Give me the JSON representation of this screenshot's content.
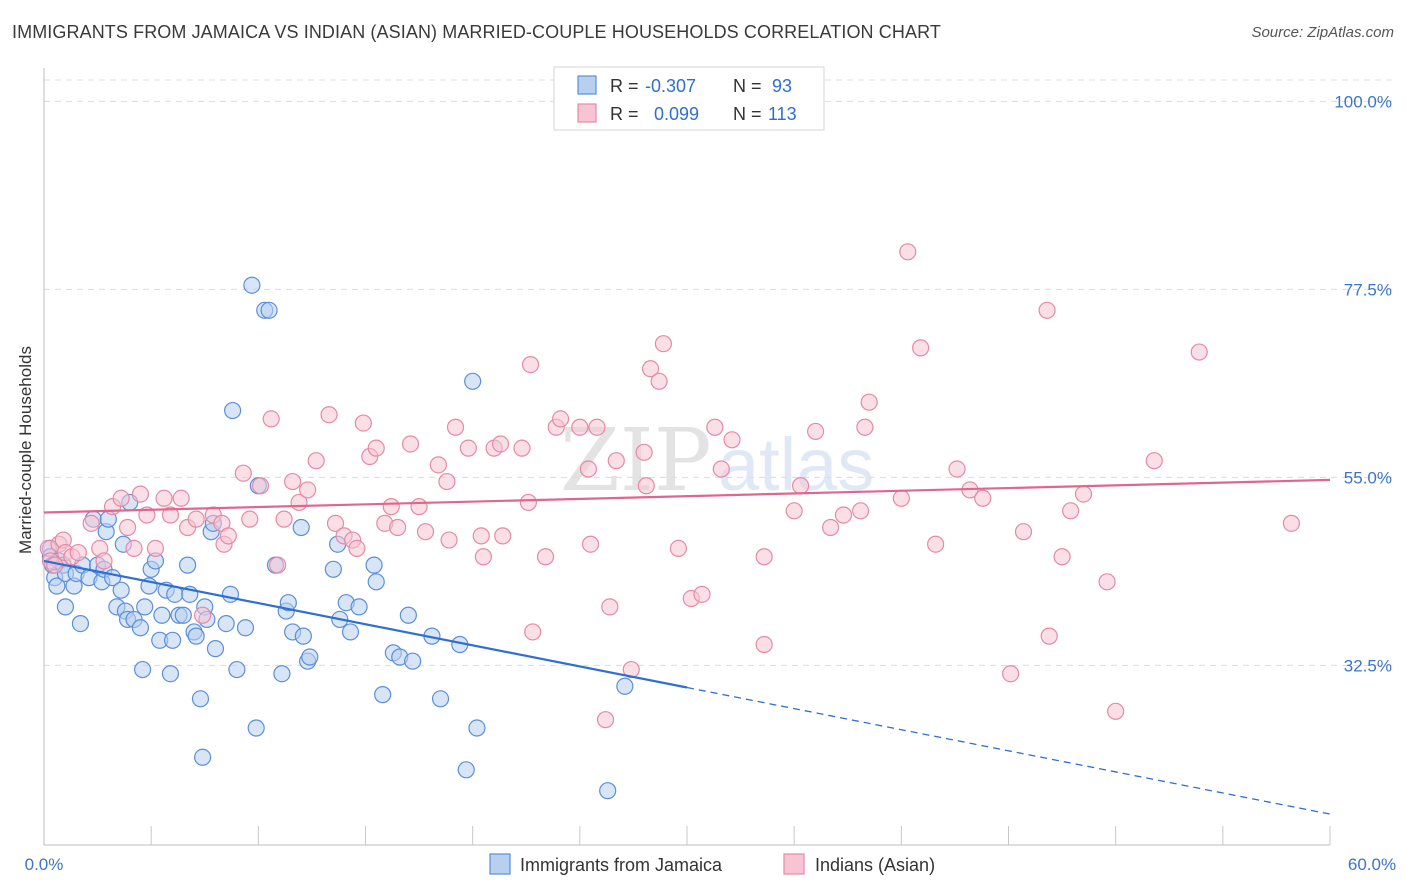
{
  "header": {
    "title": "IMMIGRANTS FROM JAMAICA VS INDIAN (ASIAN) MARRIED-COUPLE HOUSEHOLDS CORRELATION CHART",
    "source": "Source: ZipAtlas.com"
  },
  "watermark": {
    "part1": "ZIP",
    "part2": "atlas"
  },
  "stats": [
    {
      "r_label": "R =",
      "r_value": "-0.307",
      "n_label": "N =",
      "n_value": "93"
    },
    {
      "r_label": "R =",
      "r_value": "0.099",
      "n_label": "N =",
      "n_value": "113"
    }
  ],
  "chart_data": {
    "type": "scatter",
    "title": "IMMIGRANTS FROM JAMAICA VS INDIAN (ASIAN) MARRIED-COUPLE HOUSEHOLDS CORRELATION CHART",
    "xlabel": "",
    "ylabel": "Married-couple Households",
    "xlim": [
      0,
      60
    ],
    "ylim": [
      11,
      104
    ],
    "x_tick_labels": [
      "0.0%",
      "60.0%"
    ],
    "y_ticks": [
      32.5,
      55.0,
      77.5,
      100.0
    ],
    "y_tick_labels": [
      "32.5%",
      "55.0%",
      "77.5%",
      "100.0%"
    ],
    "grid": true,
    "legend_position": "bottom-center",
    "colors": {
      "jamaica": "#5b8fd9",
      "jamaica_fill": "#b8cff0",
      "jamaica_line": "#2f6fd1",
      "indian": "#e58aa6",
      "indian_fill": "#f6c4d3",
      "indian_line": "#e0668f",
      "tick_label": "#3c74cc"
    },
    "series": [
      {
        "name": "Immigrants from Jamaica",
        "r": -0.307,
        "n": 93,
        "trend": {
          "x0": 0,
          "y0": 45.0,
          "x_solid_end": 30,
          "x1": 60,
          "y1": 14.7
        },
        "points": [
          [
            0.3,
            46.5
          ],
          [
            0.3,
            45.5
          ],
          [
            0.4,
            44.5
          ],
          [
            0.5,
            43
          ],
          [
            0.6,
            42
          ],
          [
            0.7,
            45
          ],
          [
            0.9,
            44.5
          ],
          [
            1.0,
            43.5
          ],
          [
            1.0,
            39.5
          ],
          [
            1.4,
            42
          ],
          [
            1.5,
            43.5
          ],
          [
            1.7,
            37.5
          ],
          [
            1.8,
            44.5
          ],
          [
            2.1,
            43
          ],
          [
            2.3,
            50
          ],
          [
            2.5,
            44.5
          ],
          [
            2.7,
            42.5
          ],
          [
            2.8,
            44
          ],
          [
            2.9,
            48.5
          ],
          [
            3.0,
            50
          ],
          [
            3.2,
            43
          ],
          [
            3.4,
            39.5
          ],
          [
            3.6,
            41.5
          ],
          [
            3.7,
            47
          ],
          [
            3.8,
            39
          ],
          [
            3.9,
            38
          ],
          [
            4.0,
            52
          ],
          [
            4.2,
            38
          ],
          [
            4.5,
            37
          ],
          [
            4.6,
            32
          ],
          [
            4.7,
            39.5
          ],
          [
            4.9,
            42
          ],
          [
            5.0,
            44
          ],
          [
            5.2,
            45
          ],
          [
            5.4,
            35.5
          ],
          [
            5.5,
            38.5
          ],
          [
            5.7,
            41.5
          ],
          [
            5.9,
            31.5
          ],
          [
            6.0,
            35.5
          ],
          [
            6.1,
            41
          ],
          [
            6.3,
            38.5
          ],
          [
            6.5,
            38.5
          ],
          [
            6.7,
            44.5
          ],
          [
            6.8,
            41
          ],
          [
            7.0,
            36.5
          ],
          [
            7.1,
            36
          ],
          [
            7.3,
            28.5
          ],
          [
            7.4,
            21.5
          ],
          [
            7.5,
            39.5
          ],
          [
            7.6,
            38
          ],
          [
            7.8,
            48.5
          ],
          [
            7.9,
            49.5
          ],
          [
            8.0,
            34.5
          ],
          [
            8.5,
            37.5
          ],
          [
            8.7,
            41
          ],
          [
            8.8,
            63
          ],
          [
            9.0,
            32
          ],
          [
            9.4,
            37
          ],
          [
            9.7,
            78
          ],
          [
            9.9,
            25
          ],
          [
            10.0,
            54
          ],
          [
            10.3,
            75
          ],
          [
            10.5,
            75
          ],
          [
            10.8,
            44.5
          ],
          [
            11.1,
            31.5
          ],
          [
            11.3,
            39
          ],
          [
            11.4,
            40
          ],
          [
            11.6,
            36.5
          ],
          [
            12.0,
            49
          ],
          [
            12.1,
            36
          ],
          [
            12.3,
            33
          ],
          [
            12.4,
            33.5
          ],
          [
            13.5,
            44
          ],
          [
            13.7,
            47
          ],
          [
            13.8,
            38
          ],
          [
            14.1,
            40
          ],
          [
            14.3,
            36.5
          ],
          [
            15.4,
            44.5
          ],
          [
            15.5,
            42.5
          ],
          [
            14.7,
            39.5
          ],
          [
            15.8,
            29
          ],
          [
            16.3,
            34
          ],
          [
            16.6,
            33.5
          ],
          [
            17.0,
            38.5
          ],
          [
            17.2,
            33
          ],
          [
            18.1,
            36
          ],
          [
            18.5,
            28.5
          ],
          [
            19.4,
            35
          ],
          [
            20.0,
            66.5
          ],
          [
            20.2,
            25
          ],
          [
            19.7,
            20
          ],
          [
            26.3,
            17.5
          ],
          [
            27.1,
            30
          ]
        ]
      },
      {
        "name": "Indians (Asian)",
        "r": 0.099,
        "n": 113,
        "trend": {
          "x0": 0,
          "y0": 50.8,
          "x1": 60,
          "y1": 54.7
        },
        "points": [
          [
            0.2,
            46.5
          ],
          [
            0.3,
            45
          ],
          [
            0.5,
            44.5
          ],
          [
            0.7,
            47
          ],
          [
            0.9,
            47.5
          ],
          [
            1.0,
            46
          ],
          [
            1.3,
            45.5
          ],
          [
            1.6,
            46
          ],
          [
            2.2,
            49.5
          ],
          [
            2.6,
            46.5
          ],
          [
            2.8,
            45
          ],
          [
            3.2,
            51.5
          ],
          [
            3.6,
            52.5
          ],
          [
            3.9,
            49
          ],
          [
            4.2,
            46.5
          ],
          [
            4.5,
            53
          ],
          [
            4.8,
            50.5
          ],
          [
            5.2,
            46.5
          ],
          [
            5.6,
            52.5
          ],
          [
            5.9,
            50.5
          ],
          [
            6.4,
            52.5
          ],
          [
            6.7,
            49
          ],
          [
            7.1,
            50
          ],
          [
            7.4,
            38.5
          ],
          [
            7.9,
            50.5
          ],
          [
            8.3,
            49.5
          ],
          [
            8.4,
            47
          ],
          [
            8.6,
            48
          ],
          [
            9.3,
            55.5
          ],
          [
            9.6,
            50
          ],
          [
            10.1,
            54
          ],
          [
            10.6,
            62
          ],
          [
            10.9,
            44.5
          ],
          [
            11.2,
            50
          ],
          [
            11.6,
            54.5
          ],
          [
            11.9,
            52
          ],
          [
            12.3,
            53.5
          ],
          [
            12.7,
            57
          ],
          [
            13.3,
            62.5
          ],
          [
            13.6,
            49.5
          ],
          [
            14.0,
            48
          ],
          [
            14.4,
            47.5
          ],
          [
            14.6,
            46.5
          ],
          [
            14.9,
            61.5
          ],
          [
            15.2,
            57.5
          ],
          [
            15.5,
            58.5
          ],
          [
            15.9,
            49.5
          ],
          [
            16.2,
            51.5
          ],
          [
            16.5,
            49
          ],
          [
            17.1,
            59
          ],
          [
            17.5,
            51.5
          ],
          [
            17.8,
            48.5
          ],
          [
            18.4,
            56.5
          ],
          [
            18.8,
            54.5
          ],
          [
            18.9,
            47.5
          ],
          [
            19.2,
            61
          ],
          [
            19.8,
            58.5
          ],
          [
            20.4,
            48
          ],
          [
            20.5,
            45.5
          ],
          [
            21.0,
            58.5
          ],
          [
            21.3,
            59
          ],
          [
            21.4,
            48
          ],
          [
            22.3,
            58.5
          ],
          [
            22.6,
            52
          ],
          [
            22.8,
            36.5
          ],
          [
            22.7,
            68.5
          ],
          [
            23.4,
            45.5
          ],
          [
            23.9,
            61
          ],
          [
            24.1,
            62
          ],
          [
            25.0,
            61
          ],
          [
            25.4,
            56
          ],
          [
            25.5,
            47
          ],
          [
            25.8,
            61
          ],
          [
            26.2,
            26
          ],
          [
            26.4,
            39.5
          ],
          [
            26.7,
            57
          ],
          [
            27.4,
            32
          ],
          [
            28.0,
            58
          ],
          [
            28.1,
            54
          ],
          [
            28.3,
            68
          ],
          [
            28.7,
            66.5
          ],
          [
            28.9,
            71
          ],
          [
            29.6,
            46.5
          ],
          [
            30.2,
            40.5
          ],
          [
            30.7,
            41
          ],
          [
            31.3,
            61
          ],
          [
            31.6,
            56
          ],
          [
            32.1,
            59.5
          ],
          [
            33.6,
            45.5
          ],
          [
            33.6,
            35
          ],
          [
            35.0,
            51
          ],
          [
            35.3,
            54
          ],
          [
            36.0,
            60.5
          ],
          [
            36.7,
            49
          ],
          [
            37.3,
            50.5
          ],
          [
            38.1,
            51
          ],
          [
            38.3,
            61
          ],
          [
            38.5,
            64
          ],
          [
            40.0,
            52.5
          ],
          [
            40.3,
            82
          ],
          [
            40.9,
            70.5
          ],
          [
            41.6,
            47
          ],
          [
            42.6,
            56
          ],
          [
            43.2,
            53.5
          ],
          [
            43.8,
            52.5
          ],
          [
            45.1,
            31.5
          ],
          [
            45.7,
            48.5
          ],
          [
            46.8,
            75
          ],
          [
            46.9,
            36
          ],
          [
            47.5,
            45.5
          ],
          [
            47.9,
            51
          ],
          [
            48.5,
            53
          ],
          [
            49.6,
            42.5
          ],
          [
            50.0,
            27
          ],
          [
            51.8,
            57
          ],
          [
            53.9,
            70
          ],
          [
            58.2,
            49.5
          ]
        ]
      }
    ]
  }
}
